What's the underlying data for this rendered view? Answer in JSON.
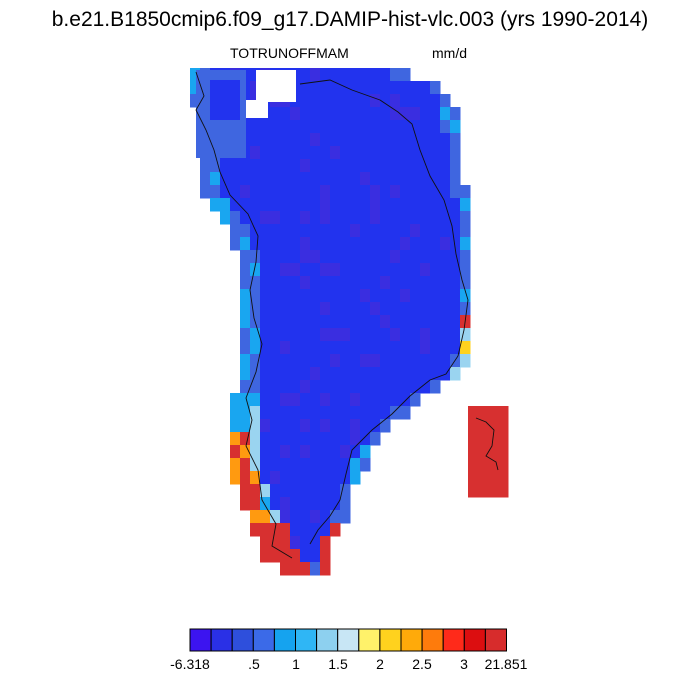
{
  "title": "b.e21.B1850cmip6.f09_g17.DAMIP-hist-vlc.003 (yrs 1990-2014)",
  "variable": "TOTRUNOFFMAM",
  "units": "mm/d",
  "colorbar": {
    "colors": [
      "#3c14f0",
      "#2a30e6",
      "#2e4fdc",
      "#3b6ae8",
      "#15a3ef",
      "#2fb6f5",
      "#8dd0ef",
      "#c8e6f5",
      "#fff26a",
      "#ffd21e",
      "#ffaa0a",
      "#fe7b0c",
      "#ff2a1a",
      "#dc0e10",
      "#d72c2c"
    ],
    "labels": [
      "-6.318",
      ".5",
      "1",
      "1.5",
      "2",
      "2.5",
      "3",
      "21.851"
    ]
  },
  "palette": {
    "deep": "#3a2ee0",
    "main": "#2233ee",
    "mid": "#3f66e0",
    "light": "#19a6f0",
    "pale": "#9ad4f0",
    "yellow": "#ffd21e",
    "orange": "#ff9a10",
    "red": "#d73030"
  }
}
